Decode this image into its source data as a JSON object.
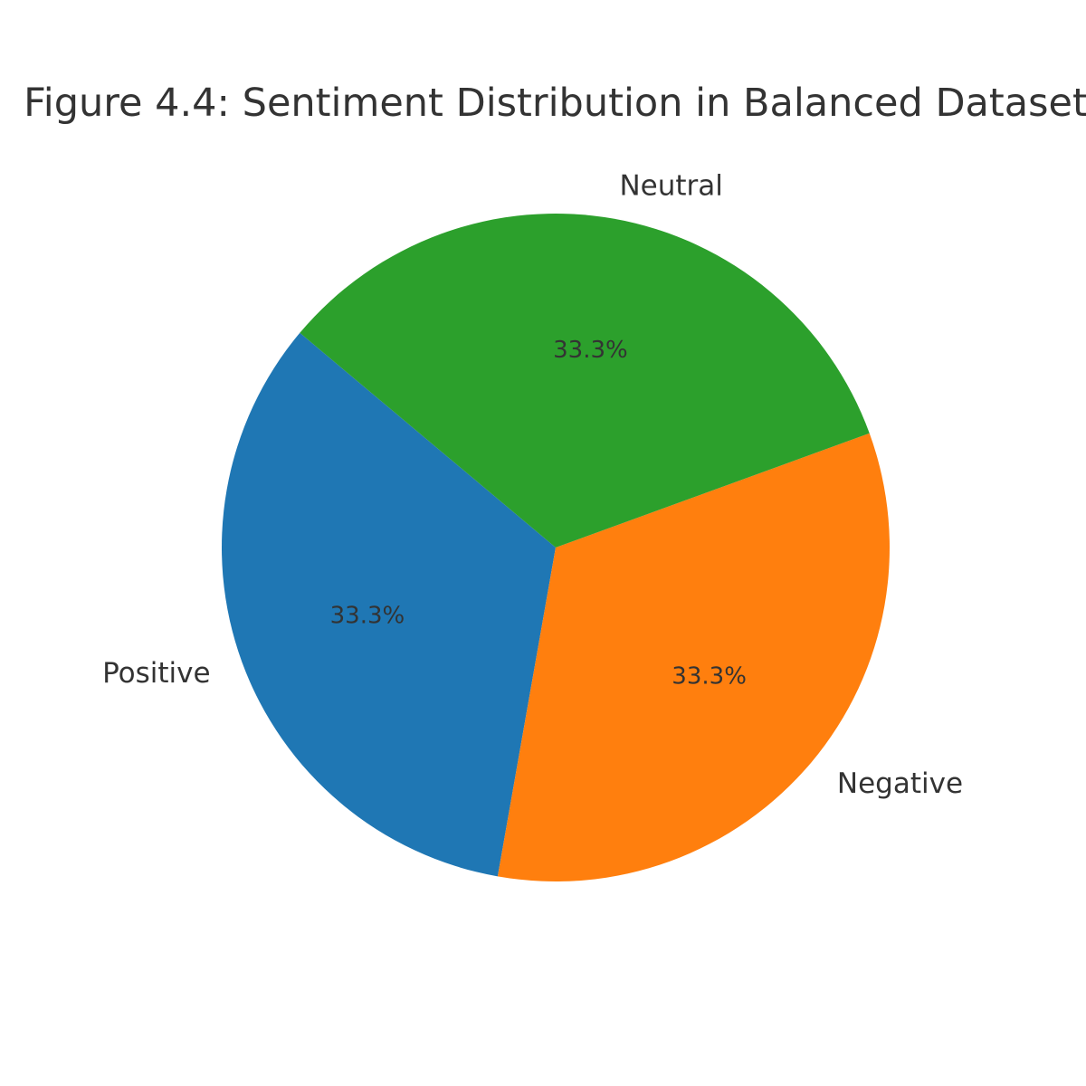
{
  "chart_data": {
    "type": "pie",
    "title": "Figure 4.4: Sentiment Distribution in Balanced Dataset",
    "slices": [
      {
        "label": "Positive",
        "value": 33.3,
        "pct_label": "33.3%",
        "color": "#1f77b4"
      },
      {
        "label": "Negative",
        "value": 33.3,
        "pct_label": "33.3%",
        "color": "#ff7f0e"
      },
      {
        "label": "Neutral",
        "value": 33.3,
        "pct_label": "33.3%",
        "color": "#2ca02c"
      }
    ],
    "start_angle_deg": 140,
    "legend": "none"
  }
}
